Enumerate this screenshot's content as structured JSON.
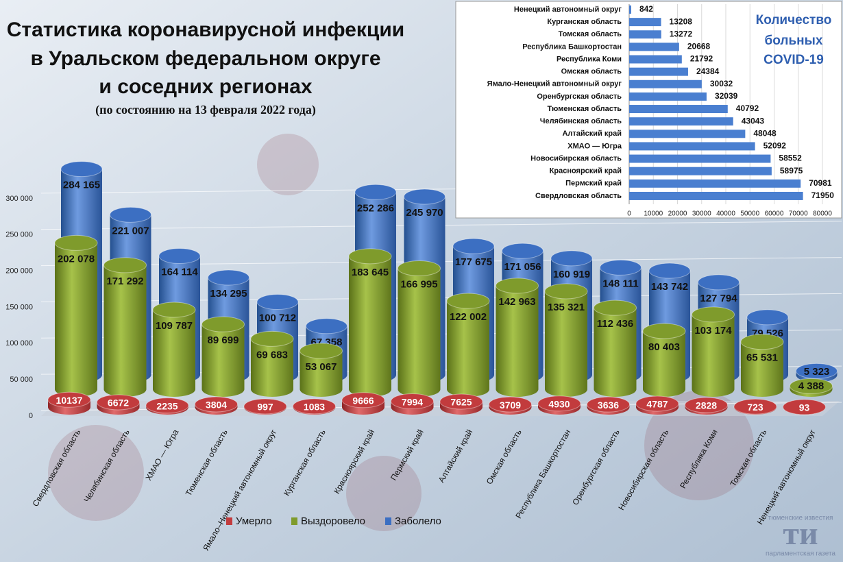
{
  "chart_data": [
    {
      "type": "cylinder-bar",
      "title": [
        "Статистика коронавирусной инфекции",
        "в Уральском федеральном округе",
        "и соседних регионах"
      ],
      "subtitle": "(по состоянию на 13 февраля 2022 года)",
      "categories": [
        "Свердловская область",
        "Челябинская область",
        "ХМАО — Югра",
        "Тюменская область",
        "Ямало–Ненецкий автономный округ",
        "Курганская область",
        "Красноярский край",
        "Пермский край",
        "Алтайский край",
        "Омская область",
        "Республика Башкортостан",
        "Оренбургская область",
        "Новосибирская область",
        "Республика Коми",
        "Томская область",
        "Ненецкий автономный округ"
      ],
      "series": [
        {
          "name": "Умерло",
          "color": "#c23b3d",
          "values": [
            10137,
            6672,
            2235,
            3804,
            997,
            1083,
            9666,
            7994,
            7625,
            3709,
            4930,
            3636,
            4787,
            2828,
            723,
            93
          ]
        },
        {
          "name": "Выздоровело",
          "color": "#7f9b2c",
          "values": [
            202078,
            171292,
            109787,
            89699,
            69683,
            53067,
            183645,
            166995,
            122002,
            142963,
            135321,
            112436,
            80403,
            103174,
            65531,
            4388
          ],
          "value_labels": [
            "202 078",
            "171 292",
            "109 787",
            "89 699",
            "69 683",
            "53 067",
            "183 645",
            "166 995",
            "122 002",
            "142 963",
            "135 321",
            "112 436",
            "80 403",
            "103 174",
            "65 531",
            "4 388"
          ]
        },
        {
          "name": "Заболело",
          "color": "#3c6fc2",
          "values": [
            284165,
            221007,
            164114,
            134295,
            100712,
            67358,
            252286,
            245970,
            177675,
            171056,
            160919,
            148111,
            143742,
            127794,
            79526,
            5323
          ],
          "value_labels": [
            "284 165",
            "221 007",
            "164 114",
            "134 295",
            "100 712",
            "67 358",
            "252 286",
            "245 970",
            "177 675",
            "171 056",
            "160 919",
            "148 111",
            "143 742",
            "127 794",
            "79 526",
            "5 323"
          ]
        }
      ],
      "ylim": [
        0,
        350000
      ],
      "yticks": [
        0,
        {
          "value": 50000,
          "label": "50 000"
        },
        {
          "value": 100000,
          "label": "100 000"
        },
        {
          "value": 150000,
          "label": "150 000"
        },
        {
          "value": 200000,
          "label": "200 000"
        },
        {
          "value": 250000,
          "label": "250 000"
        },
        {
          "value": 300000,
          "label": "300 000"
        }
      ],
      "grid": true,
      "legend": "bottom"
    },
    {
      "type": "hbar",
      "title": [
        "Количество",
        "больных",
        "COVID-19"
      ],
      "categories": [
        "Ненецкий автономный округ",
        "Курганская область",
        "Томская область",
        "Республика Башкортостан",
        "Республика Коми",
        "Омская область",
        "Ямало-Ненецкий автономный округ",
        "Оренбургская область",
        "Тюменская область",
        "Челябинская область",
        "Алтайский край",
        "ХМАО — Югра",
        "Новосибирская область",
        "Красноярский край",
        "Пермский край",
        "Свердловская область"
      ],
      "values": [
        842,
        13208,
        13272,
        20668,
        21792,
        24384,
        30032,
        32039,
        40792,
        43043,
        48048,
        52092,
        58552,
        58975,
        70981,
        71950
      ],
      "color": "#4a7fd0",
      "xlim": [
        0,
        80000
      ],
      "xticks": [
        0,
        10000,
        20000,
        30000,
        40000,
        50000,
        60000,
        70000,
        80000
      ],
      "grid": true
    }
  ],
  "brand": {
    "top": "тюменские известия",
    "mark": "ти",
    "bottom": "парламентская газета"
  }
}
